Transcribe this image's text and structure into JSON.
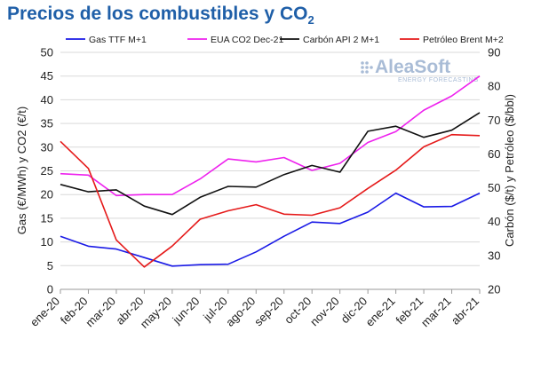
{
  "title": {
    "main": "Precios de los combustibles y CO",
    "subscript": "2"
  },
  "logo": {
    "name": "AleaSoft",
    "tagline": "ENERGY FORECASTING"
  },
  "chart_data": {
    "type": "line",
    "categories": [
      "ene-20",
      "feb-20",
      "mar-20",
      "abr-20",
      "may-20",
      "jun-20",
      "jul-20",
      "ago-20",
      "sep-20",
      "oct-20",
      "nov-20",
      "dic-20",
      "ene-21",
      "feb-21",
      "mar-21",
      "abr-21"
    ],
    "ylabel_left": "Gas (€/MWh) y CO2 (€/t)",
    "ylabel_right": "Carbón ($/t) y Petróleo ($/bbl)",
    "ylim_left": [
      0,
      50
    ],
    "ylim_right": [
      20,
      90
    ],
    "yticks_left": [
      "0",
      "5",
      "10",
      "15",
      "20",
      "25",
      "30",
      "35",
      "40",
      "45",
      "50"
    ],
    "yticks_right": [
      "20",
      "30",
      "40",
      "50",
      "60",
      "70",
      "80",
      "90"
    ],
    "grid": "horizontal",
    "legend_position": "top",
    "series": [
      {
        "name": "Gas TTF M+1",
        "axis": "left",
        "color": "#1a1ae6",
        "values": [
          11.2,
          9.1,
          8.5,
          6.7,
          4.9,
          5.2,
          5.3,
          7.9,
          11.2,
          14.2,
          13.9,
          16.3,
          20.3,
          17.4,
          17.5,
          20.3
        ]
      },
      {
        "name": "EUA CO2 Dec-21",
        "axis": "left",
        "color": "#ee22ee",
        "values": [
          24.4,
          24.1,
          19.8,
          20.0,
          20.0,
          23.3,
          27.5,
          26.9,
          27.8,
          25.1,
          26.6,
          31.0,
          33.3,
          37.8,
          40.8,
          45.0
        ]
      },
      {
        "name": "Carbón API 2 M+1",
        "axis": "right",
        "color": "#111111",
        "values": [
          51.0,
          48.8,
          49.4,
          44.6,
          42.1,
          47.2,
          50.4,
          50.2,
          53.9,
          56.6,
          54.6,
          66.7,
          68.2,
          64.9,
          67.0,
          72.2
        ]
      },
      {
        "name": "Petróleo Brent M+2",
        "axis": "right",
        "color": "#e51a1a",
        "values": [
          63.7,
          55.7,
          34.6,
          26.6,
          32.8,
          40.7,
          43.2,
          45.0,
          42.2,
          41.9,
          44.1,
          49.8,
          55.2,
          62.1,
          65.7,
          65.4
        ]
      }
    ]
  }
}
